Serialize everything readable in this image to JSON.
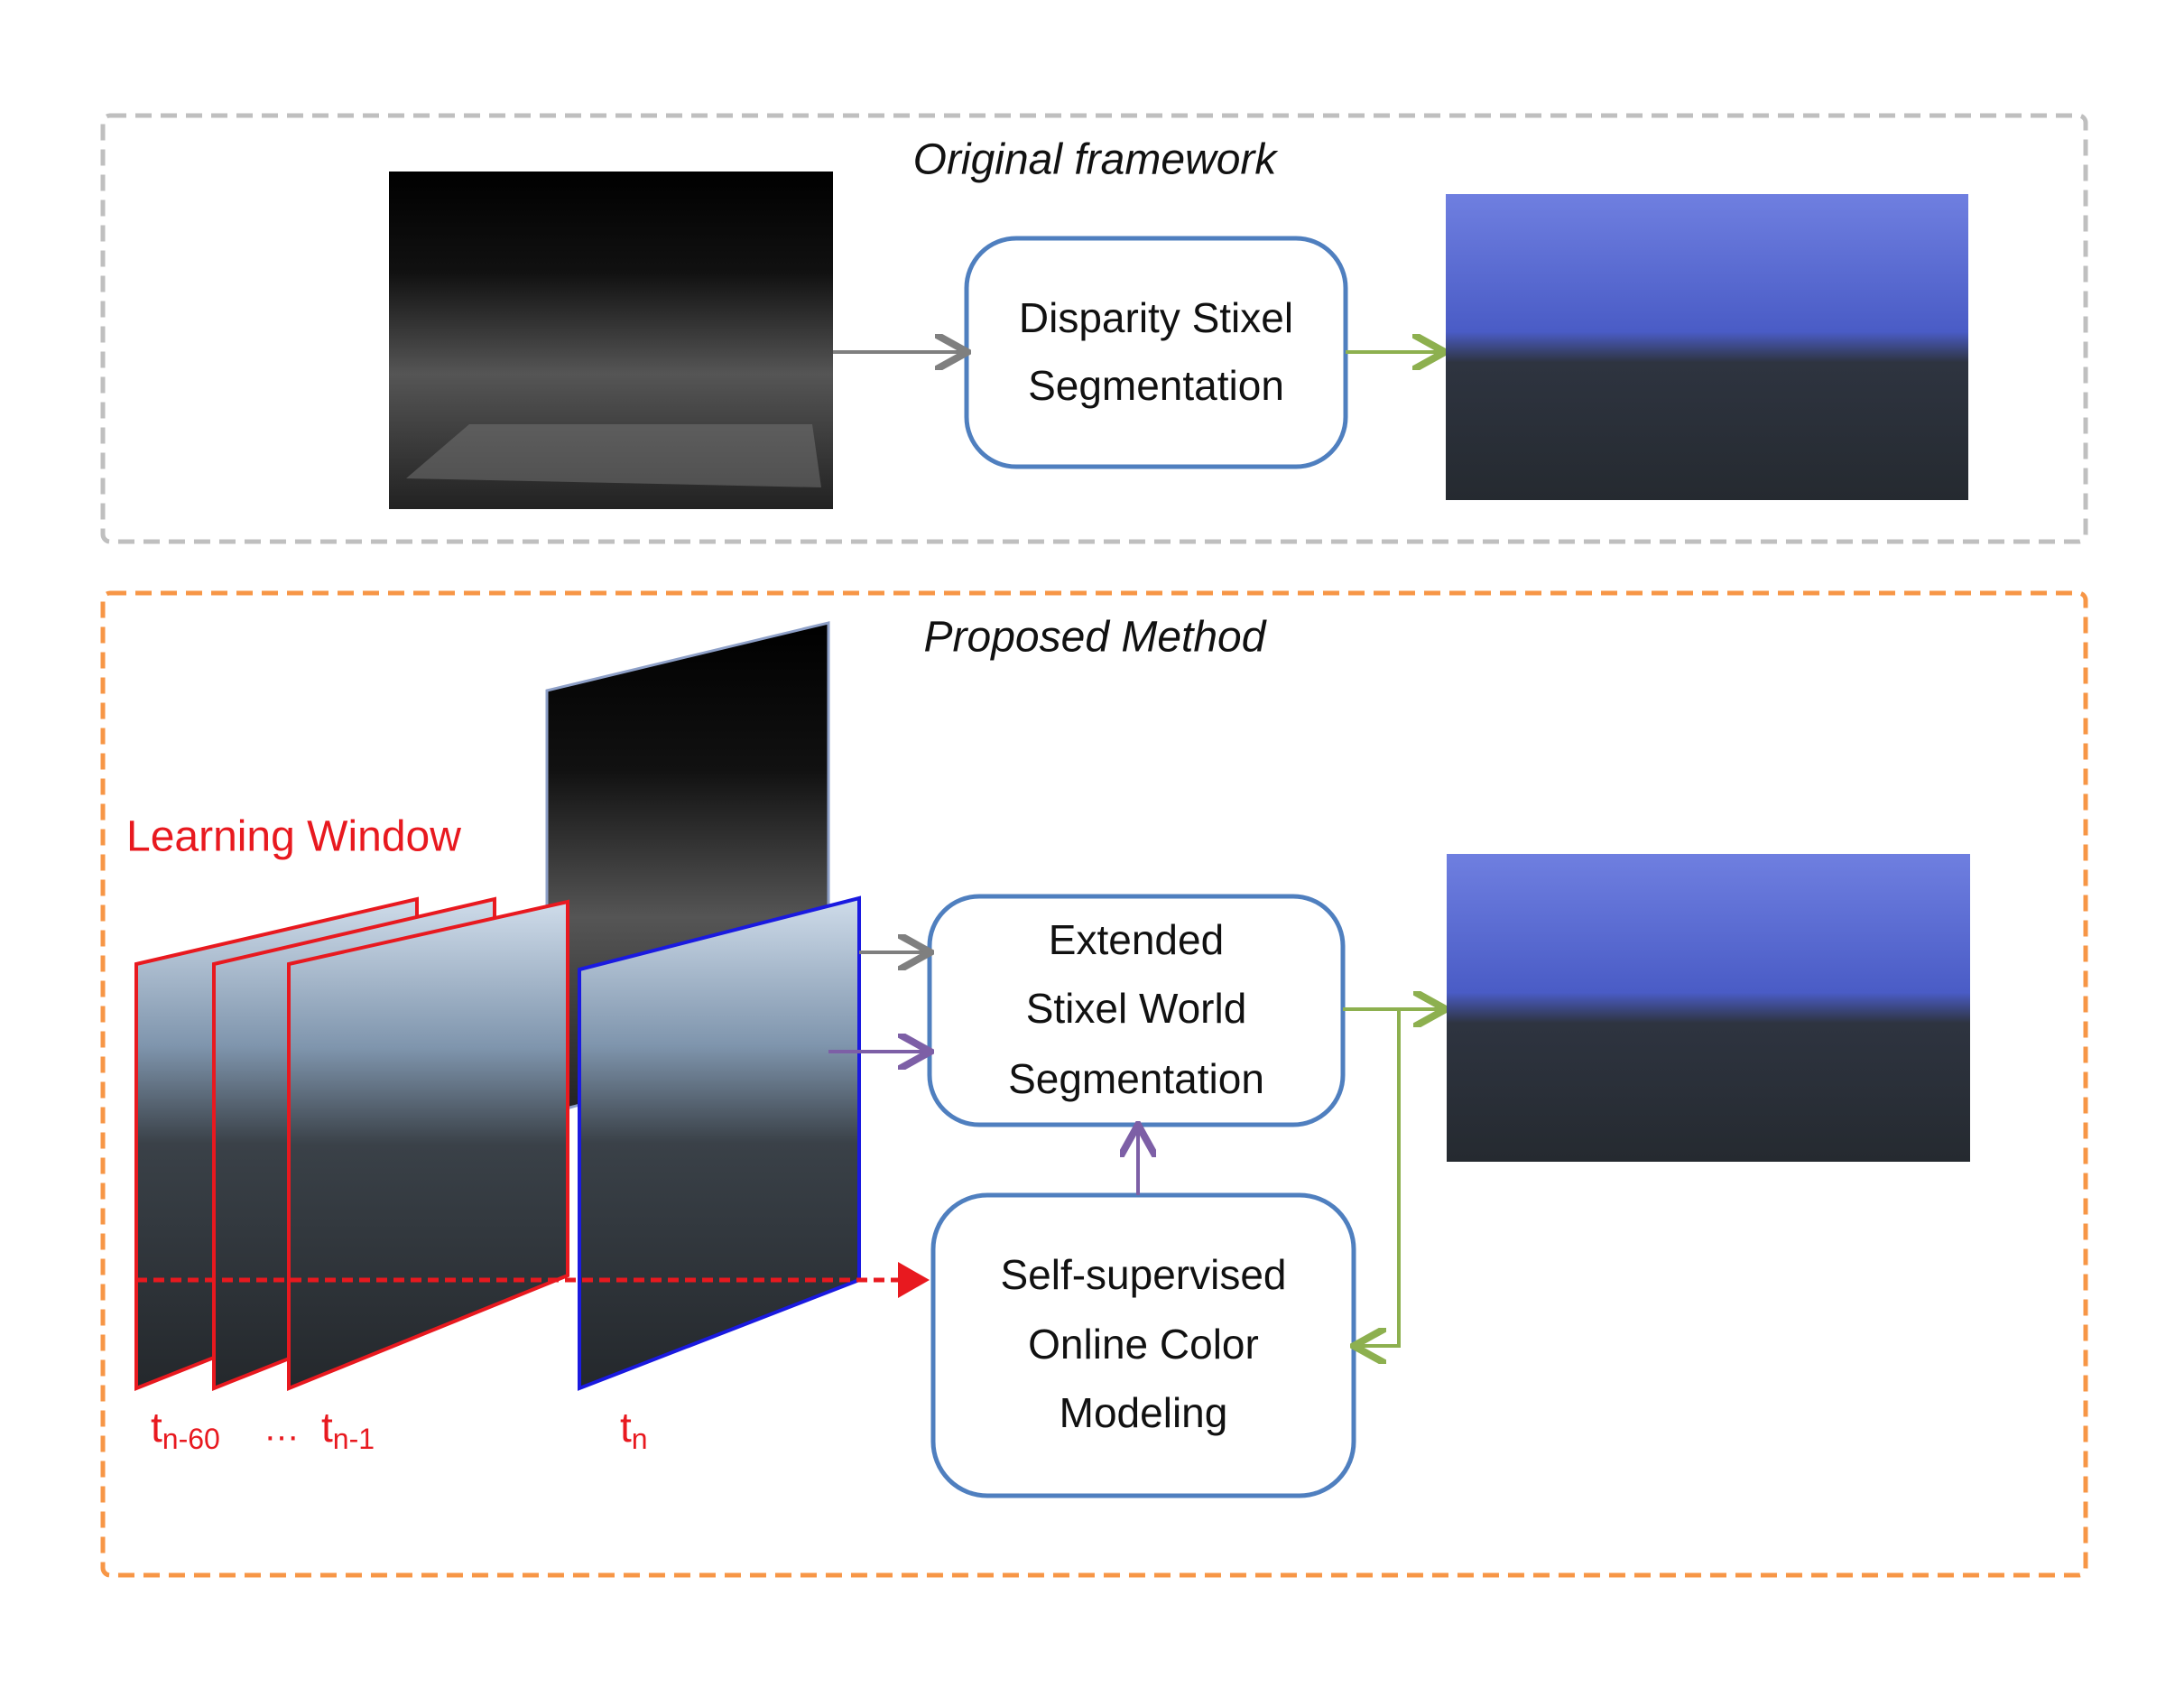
{
  "original_framework": {
    "title": "Original framework",
    "node": {
      "lines": [
        "Disparity Stixel",
        "Segmentation"
      ]
    }
  },
  "proposed_method": {
    "title": "Proposed Method",
    "learning_window": "Learning Window",
    "time_labels": [
      {
        "t": "t",
        "sub": "n-60"
      },
      {
        "t": "t",
        "sub": "n-1"
      },
      {
        "t": "t",
        "sub": "n"
      }
    ],
    "ellipsis": "…",
    "nodes": [
      {
        "lines": [
          "Extended",
          "Stixel World",
          "Segmentation"
        ]
      },
      {
        "lines": [
          "Self-supervised",
          "Online Color",
          "Modeling"
        ]
      }
    ]
  }
}
